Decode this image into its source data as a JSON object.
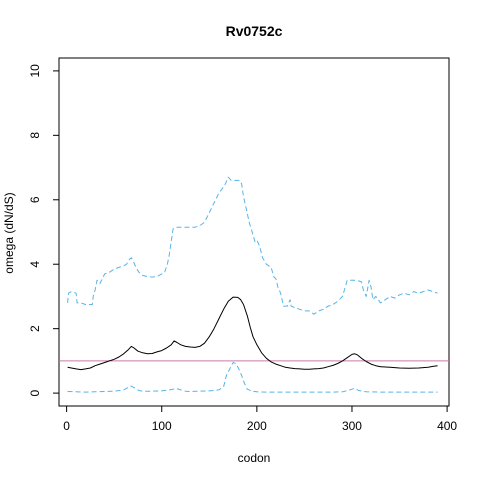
{
  "chart_data": {
    "type": "line",
    "title": "Rv0752c",
    "xlabel": "codon",
    "ylabel": "omega (dN/dS)",
    "xlim": [
      -8,
      402
    ],
    "ylim": [
      -0.4,
      10.4
    ],
    "x_ticks": [
      0,
      100,
      200,
      300,
      400
    ],
    "y_ticks": [
      0,
      2,
      4,
      6,
      8,
      10
    ],
    "grid": false,
    "legend": "none",
    "reference_line": {
      "y": 1,
      "color": "#cc79a7"
    },
    "series": [
      {
        "role": "estimate",
        "color": "#000000",
        "style": "solid",
        "points": [
          [
            1,
            0.8
          ],
          [
            5,
            0.78
          ],
          [
            10,
            0.75
          ],
          [
            15,
            0.73
          ],
          [
            20,
            0.75
          ],
          [
            25,
            0.78
          ],
          [
            30,
            0.85
          ],
          [
            35,
            0.9
          ],
          [
            40,
            0.95
          ],
          [
            45,
            1.0
          ],
          [
            50,
            1.05
          ],
          [
            55,
            1.12
          ],
          [
            60,
            1.22
          ],
          [
            65,
            1.35
          ],
          [
            68,
            1.45
          ],
          [
            70,
            1.42
          ],
          [
            75,
            1.3
          ],
          [
            80,
            1.25
          ],
          [
            85,
            1.22
          ],
          [
            90,
            1.23
          ],
          [
            95,
            1.28
          ],
          [
            100,
            1.32
          ],
          [
            105,
            1.4
          ],
          [
            110,
            1.5
          ],
          [
            113,
            1.62
          ],
          [
            116,
            1.57
          ],
          [
            120,
            1.5
          ],
          [
            125,
            1.45
          ],
          [
            130,
            1.43
          ],
          [
            135,
            1.42
          ],
          [
            140,
            1.45
          ],
          [
            145,
            1.55
          ],
          [
            150,
            1.75
          ],
          [
            155,
            2.0
          ],
          [
            160,
            2.3
          ],
          [
            165,
            2.6
          ],
          [
            170,
            2.85
          ],
          [
            175,
            2.98
          ],
          [
            180,
            2.97
          ],
          [
            183,
            2.9
          ],
          [
            186,
            2.75
          ],
          [
            190,
            2.4
          ],
          [
            193,
            2.05
          ],
          [
            196,
            1.75
          ],
          [
            200,
            1.5
          ],
          [
            205,
            1.25
          ],
          [
            210,
            1.08
          ],
          [
            215,
            0.97
          ],
          [
            220,
            0.9
          ],
          [
            225,
            0.85
          ],
          [
            230,
            0.8
          ],
          [
            235,
            0.78
          ],
          [
            240,
            0.76
          ],
          [
            245,
            0.75
          ],
          [
            250,
            0.74
          ],
          [
            255,
            0.74
          ],
          [
            260,
            0.75
          ],
          [
            265,
            0.76
          ],
          [
            270,
            0.78
          ],
          [
            275,
            0.82
          ],
          [
            280,
            0.86
          ],
          [
            285,
            0.92
          ],
          [
            290,
            1.0
          ],
          [
            295,
            1.1
          ],
          [
            300,
            1.2
          ],
          [
            303,
            1.22
          ],
          [
            306,
            1.18
          ],
          [
            310,
            1.08
          ],
          [
            315,
            0.98
          ],
          [
            320,
            0.9
          ],
          [
            325,
            0.85
          ],
          [
            330,
            0.82
          ],
          [
            340,
            0.8
          ],
          [
            350,
            0.78
          ],
          [
            360,
            0.77
          ],
          [
            370,
            0.78
          ],
          [
            380,
            0.8
          ],
          [
            385,
            0.83
          ],
          [
            390,
            0.85
          ]
        ]
      },
      {
        "role": "upper bound",
        "color": "#56b4e9",
        "style": "dashed",
        "points": [
          [
            1,
            2.8
          ],
          [
            2,
            3.1
          ],
          [
            5,
            3.15
          ],
          [
            10,
            3.1
          ],
          [
            11,
            2.8
          ],
          [
            15,
            2.8
          ],
          [
            20,
            2.75
          ],
          [
            27,
            2.75
          ],
          [
            28,
            3.0
          ],
          [
            30,
            3.2
          ],
          [
            32,
            3.5
          ],
          [
            35,
            3.4
          ],
          [
            40,
            3.7
          ],
          [
            45,
            3.75
          ],
          [
            50,
            3.85
          ],
          [
            55,
            3.9
          ],
          [
            60,
            3.95
          ],
          [
            63,
            4.0
          ],
          [
            66,
            4.15
          ],
          [
            68,
            4.2
          ],
          [
            70,
            4.1
          ],
          [
            73,
            3.9
          ],
          [
            76,
            3.75
          ],
          [
            80,
            3.65
          ],
          [
            85,
            3.62
          ],
          [
            90,
            3.6
          ],
          [
            95,
            3.62
          ],
          [
            100,
            3.7
          ],
          [
            103,
            3.75
          ],
          [
            106,
            4.0
          ],
          [
            108,
            4.3
          ],
          [
            110,
            4.7
          ],
          [
            112,
            5.1
          ],
          [
            115,
            5.15
          ],
          [
            120,
            5.15
          ],
          [
            125,
            5.15
          ],
          [
            130,
            5.15
          ],
          [
            135,
            5.15
          ],
          [
            140,
            5.2
          ],
          [
            145,
            5.3
          ],
          [
            150,
            5.6
          ],
          [
            155,
            5.9
          ],
          [
            160,
            6.2
          ],
          [
            165,
            6.4
          ],
          [
            167,
            6.5
          ],
          [
            170,
            6.7
          ],
          [
            173,
            6.6
          ],
          [
            178,
            6.6
          ],
          [
            182,
            6.6
          ],
          [
            184,
            6.5
          ],
          [
            186,
            6.1
          ],
          [
            189,
            5.7
          ],
          [
            192,
            5.3
          ],
          [
            195,
            5.0
          ],
          [
            198,
            4.7
          ],
          [
            200,
            4.75
          ],
          [
            203,
            4.55
          ],
          [
            206,
            4.2
          ],
          [
            210,
            4.0
          ],
          [
            215,
            3.9
          ],
          [
            218,
            3.6
          ],
          [
            220,
            3.55
          ],
          [
            222,
            3.3
          ],
          [
            225,
            3.1
          ],
          [
            228,
            2.7
          ],
          [
            232,
            2.7
          ],
          [
            235,
            2.9
          ],
          [
            236,
            2.7
          ],
          [
            240,
            2.65
          ],
          [
            245,
            2.6
          ],
          [
            250,
            2.55
          ],
          [
            255,
            2.55
          ],
          [
            260,
            2.45
          ],
          [
            265,
            2.55
          ],
          [
            270,
            2.6
          ],
          [
            275,
            2.7
          ],
          [
            280,
            2.75
          ],
          [
            285,
            2.85
          ],
          [
            290,
            3.0
          ],
          [
            292,
            3.2
          ],
          [
            295,
            3.5
          ],
          [
            300,
            3.5
          ],
          [
            305,
            3.5
          ],
          [
            310,
            3.45
          ],
          [
            312,
            3.2
          ],
          [
            315,
            3.0
          ],
          [
            318,
            3.5
          ],
          [
            320,
            3.3
          ],
          [
            322,
            2.9
          ],
          [
            325,
            3.0
          ],
          [
            330,
            2.8
          ],
          [
            335,
            2.9
          ],
          [
            340,
            3.0
          ],
          [
            345,
            2.95
          ],
          [
            350,
            3.05
          ],
          [
            355,
            3.1
          ],
          [
            360,
            3.05
          ],
          [
            365,
            3.15
          ],
          [
            370,
            3.1
          ],
          [
            375,
            3.15
          ],
          [
            380,
            3.2
          ],
          [
            385,
            3.15
          ],
          [
            390,
            3.1
          ]
        ]
      },
      {
        "role": "lower bound",
        "color": "#56b4e9",
        "style": "dashed",
        "points": [
          [
            1,
            0.05
          ],
          [
            10,
            0.04
          ],
          [
            20,
            0.03
          ],
          [
            30,
            0.04
          ],
          [
            40,
            0.05
          ],
          [
            50,
            0.06
          ],
          [
            60,
            0.1
          ],
          [
            65,
            0.18
          ],
          [
            68,
            0.22
          ],
          [
            72,
            0.15
          ],
          [
            76,
            0.08
          ],
          [
            80,
            0.06
          ],
          [
            90,
            0.06
          ],
          [
            100,
            0.07
          ],
          [
            108,
            0.1
          ],
          [
            112,
            0.12
          ],
          [
            115,
            0.15
          ],
          [
            120,
            0.1
          ],
          [
            125,
            0.06
          ],
          [
            130,
            0.05
          ],
          [
            140,
            0.06
          ],
          [
            150,
            0.07
          ],
          [
            160,
            0.1
          ],
          [
            165,
            0.2
          ],
          [
            168,
            0.55
          ],
          [
            172,
            0.78
          ],
          [
            175,
            0.95
          ],
          [
            178,
            0.92
          ],
          [
            181,
            0.75
          ],
          [
            184,
            0.55
          ],
          [
            187,
            0.3
          ],
          [
            190,
            0.12
          ],
          [
            195,
            0.06
          ],
          [
            200,
            0.04
          ],
          [
            210,
            0.03
          ],
          [
            220,
            0.03
          ],
          [
            230,
            0.03
          ],
          [
            240,
            0.03
          ],
          [
            250,
            0.03
          ],
          [
            260,
            0.03
          ],
          [
            270,
            0.03
          ],
          [
            280,
            0.03
          ],
          [
            290,
            0.04
          ],
          [
            296,
            0.08
          ],
          [
            300,
            0.12
          ],
          [
            303,
            0.15
          ],
          [
            307,
            0.08
          ],
          [
            315,
            0.04
          ],
          [
            330,
            0.03
          ],
          [
            350,
            0.03
          ],
          [
            370,
            0.03
          ],
          [
            390,
            0.03
          ]
        ]
      }
    ]
  }
}
